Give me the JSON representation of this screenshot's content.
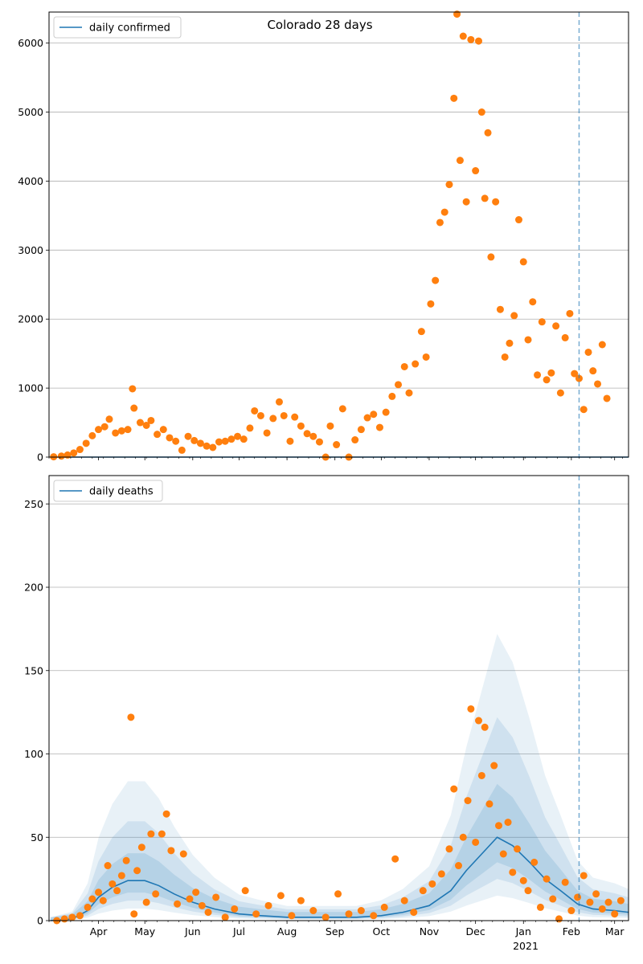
{
  "chart_data": [
    {
      "type": "scatter",
      "title": "Colorado 28 days",
      "xlabel": "",
      "ylabel": "",
      "ylim": [
        0,
        6450
      ],
      "yticks": [
        0,
        1000,
        2000,
        3000,
        4000,
        5000,
        6000
      ],
      "grid": "horizontal",
      "legend": {
        "position": "top-left",
        "entries": [
          "daily confirmed"
        ]
      },
      "forecast_start": "2021-02-06",
      "series": [
        {
          "name": "daily confirmed",
          "type": "line",
          "color": "#1f77b4",
          "points": [
            [
              "2020-03-01",
              0
            ],
            [
              "2021-03-10",
              0
            ]
          ]
        },
        {
          "type": "scatter",
          "color": "#ff7f0e",
          "points": [
            [
              "2020-03-03",
              5
            ],
            [
              "2020-03-08",
              15
            ],
            [
              "2020-03-12",
              30
            ],
            [
              "2020-03-16",
              60
            ],
            [
              "2020-03-20",
              110
            ],
            [
              "2020-03-24",
              200
            ],
            [
              "2020-03-28",
              310
            ],
            [
              "2020-04-01",
              400
            ],
            [
              "2020-04-05",
              440
            ],
            [
              "2020-04-08",
              550
            ],
            [
              "2020-04-12",
              350
            ],
            [
              "2020-04-16",
              380
            ],
            [
              "2020-04-20",
              400
            ],
            [
              "2020-04-23",
              990
            ],
            [
              "2020-04-24",
              710
            ],
            [
              "2020-04-28",
              500
            ],
            [
              "2020-05-02",
              460
            ],
            [
              "2020-05-05",
              530
            ],
            [
              "2020-05-09",
              330
            ],
            [
              "2020-05-13",
              400
            ],
            [
              "2020-05-17",
              280
            ],
            [
              "2020-05-21",
              230
            ],
            [
              "2020-05-25",
              100
            ],
            [
              "2020-05-29",
              300
            ],
            [
              "2020-06-02",
              240
            ],
            [
              "2020-06-06",
              200
            ],
            [
              "2020-06-10",
              160
            ],
            [
              "2020-06-14",
              140
            ],
            [
              "2020-06-18",
              220
            ],
            [
              "2020-06-22",
              230
            ],
            [
              "2020-06-26",
              260
            ],
            [
              "2020-06-30",
              300
            ],
            [
              "2020-07-04",
              260
            ],
            [
              "2020-07-08",
              420
            ],
            [
              "2020-07-11",
              670
            ],
            [
              "2020-07-15",
              600
            ],
            [
              "2020-07-19",
              350
            ],
            [
              "2020-07-23",
              560
            ],
            [
              "2020-07-27",
              800
            ],
            [
              "2020-07-30",
              600
            ],
            [
              "2020-08-03",
              230
            ],
            [
              "2020-08-06",
              580
            ],
            [
              "2020-08-10",
              450
            ],
            [
              "2020-08-14",
              340
            ],
            [
              "2020-08-18",
              300
            ],
            [
              "2020-08-22",
              220
            ],
            [
              "2020-08-26",
              0
            ],
            [
              "2020-08-29",
              450
            ],
            [
              "2020-09-02",
              180
            ],
            [
              "2020-09-06",
              700
            ],
            [
              "2020-09-10",
              0
            ],
            [
              "2020-09-14",
              250
            ],
            [
              "2020-09-18",
              400
            ],
            [
              "2020-09-22",
              570
            ],
            [
              "2020-09-26",
              620
            ],
            [
              "2020-09-30",
              430
            ],
            [
              "2020-10-04",
              650
            ],
            [
              "2020-10-08",
              880
            ],
            [
              "2020-10-12",
              1050
            ],
            [
              "2020-10-16",
              1310
            ],
            [
              "2020-10-19",
              930
            ],
            [
              "2020-10-23",
              1350
            ],
            [
              "2020-10-27",
              1820
            ],
            [
              "2020-10-30",
              1450
            ],
            [
              "2020-11-02",
              2220
            ],
            [
              "2020-11-05",
              2560
            ],
            [
              "2020-11-08",
              3400
            ],
            [
              "2020-11-11",
              3550
            ],
            [
              "2020-11-14",
              3950
            ],
            [
              "2020-11-17",
              5200
            ],
            [
              "2020-11-19",
              6420
            ],
            [
              "2020-11-21",
              4300
            ],
            [
              "2020-11-23",
              6100
            ],
            [
              "2020-11-25",
              3700
            ],
            [
              "2020-11-28",
              6050
            ],
            [
              "2020-12-01",
              4150
            ],
            [
              "2020-12-03",
              6030
            ],
            [
              "2020-12-05",
              5000
            ],
            [
              "2020-12-07",
              3750
            ],
            [
              "2020-12-09",
              4700
            ],
            [
              "2020-12-11",
              2900
            ],
            [
              "2020-12-14",
              3700
            ],
            [
              "2020-12-17",
              2140
            ],
            [
              "2020-12-20",
              1450
            ],
            [
              "2020-12-23",
              1650
            ],
            [
              "2020-12-26",
              2050
            ],
            [
              "2020-12-29",
              3440
            ],
            [
              "2021-01-01",
              2830
            ],
            [
              "2021-01-04",
              1700
            ],
            [
              "2021-01-07",
              2250
            ],
            [
              "2021-01-10",
              1190
            ],
            [
              "2021-01-13",
              1960
            ],
            [
              "2021-01-16",
              1120
            ],
            [
              "2021-01-19",
              1220
            ],
            [
              "2021-01-22",
              1900
            ],
            [
              "2021-01-25",
              930
            ],
            [
              "2021-01-28",
              1730
            ],
            [
              "2021-01-31",
              2080
            ],
            [
              "2021-02-03",
              1210
            ],
            [
              "2021-02-06",
              1140
            ],
            [
              "2021-02-09",
              690
            ],
            [
              "2021-02-12",
              1520
            ],
            [
              "2021-02-15",
              1250
            ],
            [
              "2021-02-18",
              1060
            ],
            [
              "2021-02-21",
              1630
            ],
            [
              "2021-02-24",
              850
            ]
          ]
        }
      ]
    },
    {
      "type": "scatter",
      "title": "",
      "xlabel": "",
      "ylabel": "",
      "ylim": [
        0,
        267
      ],
      "yticks": [
        0,
        50,
        100,
        150,
        200,
        250
      ],
      "grid": "horizontal",
      "legend": {
        "position": "top-left",
        "entries": [
          "daily deaths"
        ]
      },
      "forecast_start": "2021-02-06",
      "xticks": [
        "Apr",
        "May",
        "Jun",
        "Jul",
        "Aug",
        "Sep",
        "Oct",
        "Nov",
        "Dec",
        "Jan",
        "Feb",
        "Mar"
      ],
      "xtick_dates": [
        "2020-04-01",
        "2020-05-01",
        "2020-06-01",
        "2020-07-01",
        "2020-08-01",
        "2020-09-01",
        "2020-10-01",
        "2020-11-01",
        "2020-12-01",
        "2021-01-01",
        "2021-02-01",
        "2021-03-01"
      ],
      "year_label": "2021",
      "series": [
        {
          "name": "daily deaths",
          "type": "line",
          "color": "#1f77b4",
          "points": [
            [
              "2020-03-01",
              0
            ],
            [
              "2020-03-15",
              1
            ],
            [
              "2020-03-25",
              6
            ],
            [
              "2020-04-01",
              14
            ],
            [
              "2020-04-10",
              20
            ],
            [
              "2020-04-20",
              24
            ],
            [
              "2020-05-01",
              24
            ],
            [
              "2020-05-10",
              21
            ],
            [
              "2020-05-20",
              16
            ],
            [
              "2020-06-01",
              11
            ],
            [
              "2020-06-15",
              7
            ],
            [
              "2020-07-01",
              4
            ],
            [
              "2020-07-15",
              3
            ],
            [
              "2020-08-01",
              2
            ],
            [
              "2020-08-15",
              2
            ],
            [
              "2020-09-01",
              2
            ],
            [
              "2020-09-15",
              2
            ],
            [
              "2020-10-01",
              3
            ],
            [
              "2020-10-15",
              5
            ],
            [
              "2020-11-01",
              9
            ],
            [
              "2020-11-15",
              18
            ],
            [
              "2020-11-25",
              30
            ],
            [
              "2020-12-05",
              40
            ],
            [
              "2020-12-15",
              50
            ],
            [
              "2020-12-25",
              45
            ],
            [
              "2021-01-05",
              35
            ],
            [
              "2021-01-15",
              25
            ],
            [
              "2021-01-25",
              18
            ],
            [
              "2021-02-05",
              10
            ],
            [
              "2021-02-15",
              7
            ],
            [
              "2021-03-01",
              6
            ],
            [
              "2021-03-10",
              5
            ]
          ]
        },
        {
          "type": "scatter",
          "color": "#ff7f0e",
          "points": [
            [
              "2020-03-05",
              0
            ],
            [
              "2020-03-10",
              1
            ],
            [
              "2020-03-15",
              2
            ],
            [
              "2020-03-20",
              3
            ],
            [
              "2020-03-25",
              8
            ],
            [
              "2020-03-28",
              13
            ],
            [
              "2020-04-01",
              17
            ],
            [
              "2020-04-04",
              12
            ],
            [
              "2020-04-07",
              33
            ],
            [
              "2020-04-10",
              22
            ],
            [
              "2020-04-13",
              18
            ],
            [
              "2020-04-16",
              27
            ],
            [
              "2020-04-19",
              36
            ],
            [
              "2020-04-22",
              122
            ],
            [
              "2020-04-24",
              4
            ],
            [
              "2020-04-26",
              30
            ],
            [
              "2020-04-29",
              44
            ],
            [
              "2020-05-02",
              11
            ],
            [
              "2020-05-05",
              52
            ],
            [
              "2020-05-08",
              16
            ],
            [
              "2020-05-12",
              52
            ],
            [
              "2020-05-15",
              64
            ],
            [
              "2020-05-18",
              42
            ],
            [
              "2020-05-22",
              10
            ],
            [
              "2020-05-26",
              40
            ],
            [
              "2020-05-30",
              13
            ],
            [
              "2020-06-03",
              17
            ],
            [
              "2020-06-07",
              9
            ],
            [
              "2020-06-11",
              5
            ],
            [
              "2020-06-16",
              14
            ],
            [
              "2020-06-22",
              2
            ],
            [
              "2020-06-28",
              7
            ],
            [
              "2020-07-05",
              18
            ],
            [
              "2020-07-12",
              4
            ],
            [
              "2020-07-20",
              9
            ],
            [
              "2020-07-28",
              15
            ],
            [
              "2020-08-04",
              3
            ],
            [
              "2020-08-10",
              12
            ],
            [
              "2020-08-18",
              6
            ],
            [
              "2020-08-26",
              2
            ],
            [
              "2020-09-03",
              16
            ],
            [
              "2020-09-10",
              4
            ],
            [
              "2020-09-18",
              6
            ],
            [
              "2020-09-26",
              3
            ],
            [
              "2020-10-03",
              8
            ],
            [
              "2020-10-10",
              37
            ],
            [
              "2020-10-16",
              12
            ],
            [
              "2020-10-22",
              5
            ],
            [
              "2020-10-28",
              18
            ],
            [
              "2020-11-03",
              22
            ],
            [
              "2020-11-09",
              28
            ],
            [
              "2020-11-14",
              43
            ],
            [
              "2020-11-17",
              79
            ],
            [
              "2020-11-20",
              33
            ],
            [
              "2020-11-23",
              50
            ],
            [
              "2020-11-26",
              72
            ],
            [
              "2020-11-28",
              127
            ],
            [
              "2020-12-01",
              47
            ],
            [
              "2020-12-03",
              120
            ],
            [
              "2020-12-05",
              87
            ],
            [
              "2020-12-07",
              116
            ],
            [
              "2020-12-10",
              70
            ],
            [
              "2020-12-13",
              93
            ],
            [
              "2020-12-16",
              57
            ],
            [
              "2020-12-19",
              40
            ],
            [
              "2020-12-22",
              59
            ],
            [
              "2020-12-25",
              29
            ],
            [
              "2020-12-28",
              43
            ],
            [
              "2021-01-01",
              24
            ],
            [
              "2021-01-04",
              18
            ],
            [
              "2021-01-08",
              35
            ],
            [
              "2021-01-12",
              8
            ],
            [
              "2021-01-16",
              25
            ],
            [
              "2021-01-20",
              13
            ],
            [
              "2021-01-24",
              1
            ],
            [
              "2021-01-28",
              23
            ],
            [
              "2021-02-01",
              6
            ],
            [
              "2021-02-05",
              14
            ],
            [
              "2021-02-09",
              27
            ],
            [
              "2021-02-13",
              11
            ],
            [
              "2021-02-17",
              16
            ],
            [
              "2021-02-21",
              7
            ],
            [
              "2021-02-25",
              11
            ],
            [
              "2021-03-01",
              4
            ],
            [
              "2021-03-05",
              12
            ]
          ]
        }
      ],
      "bands_color": "#1f77b4"
    }
  ]
}
